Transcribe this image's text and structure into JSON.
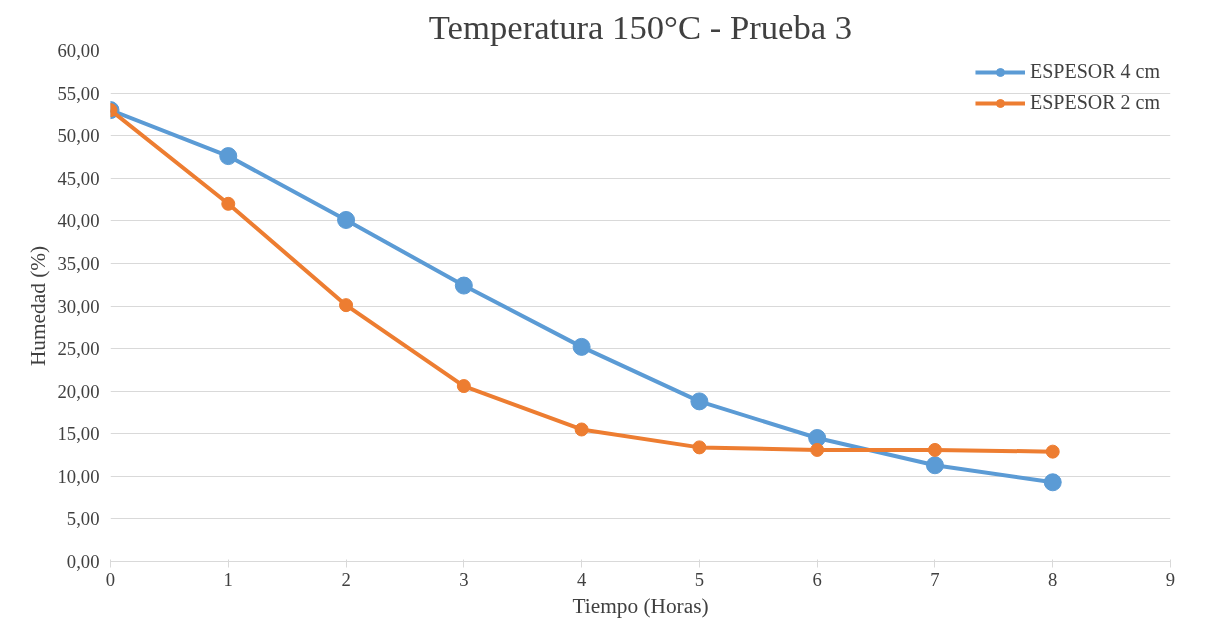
{
  "chart_data": {
    "type": "line",
    "title": "Temperatura 150°C - Prueba 3",
    "xlabel": "Tiempo (Horas)",
    "ylabel": "Humedad (%)",
    "x": [
      0,
      1,
      2,
      3,
      4,
      5,
      6,
      7,
      8
    ],
    "series": [
      {
        "name": "ESPESOR 4 cm",
        "color": "#5b9bd5",
        "values": [
          53.0,
          47.6,
          40.1,
          32.4,
          25.2,
          18.8,
          14.5,
          11.3,
          9.3
        ]
      },
      {
        "name": "ESPESOR 2 cm",
        "color": "#ed7d31",
        "values": [
          53.0,
          42.0,
          30.1,
          20.6,
          15.5,
          13.4,
          13.1,
          13.1,
          12.9
        ]
      }
    ],
    "xlim": [
      0,
      9
    ],
    "xticks": [
      0,
      1,
      2,
      3,
      4,
      5,
      6,
      7,
      8,
      9
    ],
    "ylim": [
      0,
      60
    ],
    "yticks": [
      {
        "value": 0,
        "label": "0,00"
      },
      {
        "value": 5,
        "label": "5,00"
      },
      {
        "value": 10,
        "label": "10,00"
      },
      {
        "value": 15,
        "label": "15,00"
      },
      {
        "value": 20,
        "label": "20,00"
      },
      {
        "value": 25,
        "label": "25,00"
      },
      {
        "value": 30,
        "label": "30,00"
      },
      {
        "value": 35,
        "label": "35,00"
      },
      {
        "value": 40,
        "label": "40,00"
      },
      {
        "value": 45,
        "label": "45,00"
      },
      {
        "value": 50,
        "label": "50,00"
      },
      {
        "value": 55,
        "label": "55,00"
      },
      {
        "value": 60,
        "label": "60,00"
      }
    ],
    "grid": "y",
    "legend": "top right",
    "marker": "circle",
    "line_style": "solid"
  }
}
